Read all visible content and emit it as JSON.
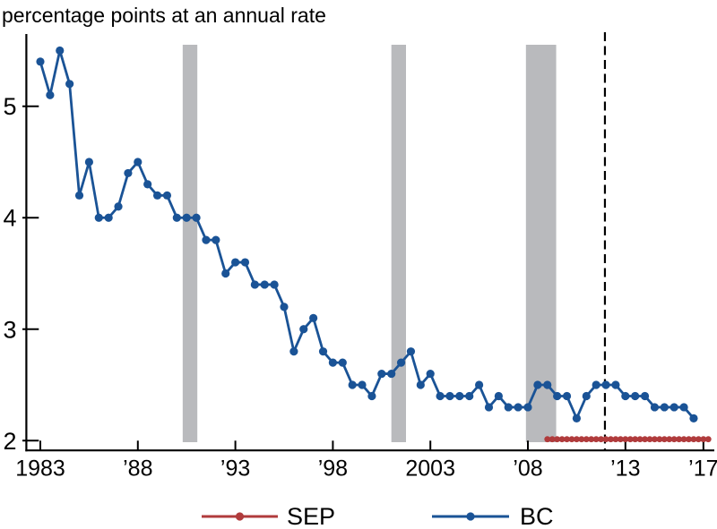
{
  "title": "percentage points at an annual rate",
  "colors": {
    "bc_blue": "#1A5396",
    "sep_red": "#B03B3C",
    "recession_gray": "#B9BABD",
    "axis_black": "#000000",
    "background": "#FFFFFF"
  },
  "legend": {
    "position": "bottom",
    "items": [
      {
        "label": "SEP",
        "color": "#B03B3C"
      },
      {
        "label": "BC",
        "color": "#1A5396"
      }
    ]
  },
  "chart_data": {
    "type": "line",
    "title": "percentage points at an annual rate",
    "xlabel": "",
    "ylabel": "",
    "grid": false,
    "legend_position": "bottom",
    "x_axis": {
      "ticks": [
        1983,
        1988,
        1993,
        1998,
        2003,
        2008,
        2013,
        2017
      ],
      "tick_labels": [
        "1983",
        "’88",
        "’93",
        "’98",
        "2003",
        "’08",
        "’13",
        "’17"
      ],
      "range": [
        1982.2,
        2017.6
      ]
    },
    "y_axis": {
      "ticks": [
        2,
        3,
        4,
        5
      ],
      "tick_labels": [
        "2",
        "3",
        "4",
        "5"
      ],
      "range": [
        1.9,
        5.65
      ]
    },
    "series": [
      {
        "name": "BC",
        "color": "#1A5396",
        "marker": "circle",
        "frequency": "semiannual",
        "x": [
          1983,
          1983.5,
          1984,
          1984.5,
          1985,
          1985.5,
          1986,
          1986.5,
          1987,
          1987.5,
          1988,
          1988.5,
          1989,
          1989.5,
          1990,
          1990.5,
          1991,
          1991.5,
          1992,
          1992.5,
          1993,
          1993.5,
          1994,
          1994.5,
          1995,
          1995.5,
          1996,
          1996.5,
          1997,
          1997.5,
          1998,
          1998.5,
          1999,
          1999.5,
          2000,
          2000.5,
          2001,
          2001.5,
          2002,
          2002.5,
          2003,
          2003.5,
          2004,
          2004.5,
          2005,
          2005.5,
          2006,
          2006.5,
          2007,
          2007.5,
          2008,
          2008.5,
          2009,
          2009.5,
          2010,
          2010.5,
          2011,
          2011.5,
          2012,
          2012.5,
          2013,
          2013.5,
          2014,
          2014.5,
          2015,
          2015.5,
          2016,
          2016.5
        ],
        "values": [
          5.4,
          5.1,
          5.5,
          5.2,
          4.2,
          4.5,
          4.0,
          4.0,
          4.1,
          4.4,
          4.5,
          4.3,
          4.2,
          4.2,
          4.0,
          4.0,
          4.0,
          3.8,
          3.8,
          3.5,
          3.6,
          3.6,
          3.4,
          3.4,
          3.4,
          3.2,
          2.8,
          3.0,
          3.1,
          2.8,
          2.7,
          2.7,
          2.5,
          2.5,
          2.4,
          2.6,
          2.6,
          2.7,
          2.8,
          2.5,
          2.6,
          2.4,
          2.4,
          2.4,
          2.4,
          2.5,
          2.3,
          2.4,
          2.3,
          2.3,
          2.3,
          2.5,
          2.5,
          2.4,
          2.4,
          2.2,
          2.4,
          2.5,
          2.5,
          2.5,
          2.4,
          2.4,
          2.4,
          2.3,
          2.3,
          2.3,
          2.3,
          2.2
        ]
      },
      {
        "name": "SEP",
        "color": "#B03B3C",
        "marker": "circle",
        "frequency": "quarterly",
        "x": [
          2009,
          2009.25,
          2009.5,
          2009.75,
          2010,
          2010.25,
          2010.5,
          2010.75,
          2011,
          2011.25,
          2011.5,
          2011.75,
          2012,
          2012.25,
          2012.5,
          2012.75,
          2013,
          2013.25,
          2013.5,
          2013.75,
          2014,
          2014.25,
          2014.5,
          2014.75,
          2015,
          2015.25,
          2015.5,
          2015.75,
          2016,
          2016.25,
          2016.5,
          2016.75,
          2017,
          2017.25
        ],
        "values": [
          2.0,
          2.0,
          2.0,
          2.0,
          2.0,
          2.0,
          2.0,
          2.0,
          2.0,
          2.0,
          2.0,
          2.0,
          2.0,
          2.0,
          2.0,
          2.0,
          2.0,
          2.0,
          2.0,
          2.0,
          2.0,
          2.0,
          2.0,
          2.0,
          2.0,
          2.0,
          2.0,
          2.0,
          2.0,
          2.0,
          2.0,
          2.0,
          2.0,
          2.0
        ]
      }
    ],
    "recession_bands": [
      {
        "start": 1990.3,
        "end": 1991.05
      },
      {
        "start": 2001.0,
        "end": 2001.75
      },
      {
        "start": 2007.9,
        "end": 2009.45
      }
    ],
    "dashed_vline_x": 2011.95
  }
}
